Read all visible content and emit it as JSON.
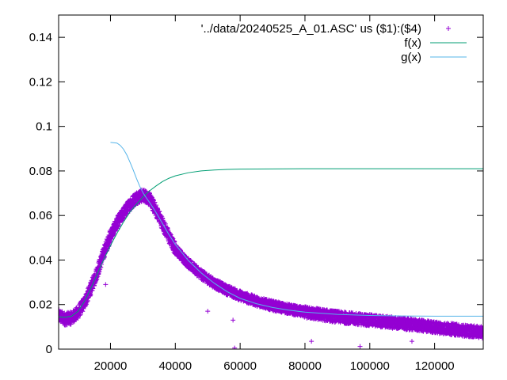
{
  "chart_data": {
    "type": "scatter",
    "title": "",
    "xlabel": "",
    "ylabel": "",
    "xlim": [
      4000,
      135000
    ],
    "ylim": [
      0,
      0.15
    ],
    "x_ticks": [
      20000,
      40000,
      60000,
      80000,
      100000,
      120000
    ],
    "x_tick_labels": [
      "20000",
      "40000",
      "60000",
      "80000",
      "100000",
      "120000"
    ],
    "y_ticks": [
      0,
      0.02,
      0.04,
      0.06,
      0.08,
      0.1,
      0.12,
      0.14
    ],
    "y_tick_labels": [
      "0",
      "0.02",
      "0.04",
      "0.06",
      "0.08",
      "0.1",
      "0.12",
      "0.14"
    ],
    "grid": false,
    "legend_position": "top-right",
    "series": [
      {
        "name": "'../data/20240525_A_01.ASC' us ($1):($4)",
        "kind": "points",
        "marker": "+",
        "color": "#9400d3",
        "x": [
          4000,
          6000,
          8000,
          10000,
          12000,
          14000,
          16000,
          18000,
          20000,
          22000,
          24000,
          26000,
          28000,
          30000,
          31000,
          32000,
          34000,
          36000,
          38000,
          40000,
          44000,
          48000,
          52000,
          56000,
          60000,
          65000,
          70000,
          75000,
          80000,
          85000,
          90000,
          95000,
          100000,
          105000,
          110000,
          115000,
          120000,
          125000,
          130000,
          135000
        ],
        "y": [
          0.015,
          0.0135,
          0.014,
          0.0165,
          0.021,
          0.0275,
          0.035,
          0.0435,
          0.051,
          0.0565,
          0.061,
          0.065,
          0.068,
          0.069,
          0.0685,
          0.0675,
          0.0625,
          0.0565,
          0.0505,
          0.045,
          0.0385,
          0.0335,
          0.0295,
          0.0265,
          0.024,
          0.0215,
          0.0195,
          0.018,
          0.0165,
          0.0155,
          0.0145,
          0.0137,
          0.013,
          0.0122,
          0.0115,
          0.0107,
          0.0098,
          0.009,
          0.0082,
          0.0075
        ]
      },
      {
        "name": "f(x)",
        "kind": "line",
        "color": "#009e73",
        "x": [
          4000,
          6000,
          8000,
          10000,
          12000,
          14000,
          16000,
          18000,
          20000,
          22000,
          24000,
          26000,
          28000,
          30000,
          32000,
          34000,
          36000,
          38000,
          40000,
          44000,
          48000,
          52000,
          56000,
          60000,
          70000,
          80000,
          90000,
          100000,
          110000,
          120000,
          135000
        ],
        "y": [
          0.0145,
          0.0143,
          0.0148,
          0.017,
          0.0215,
          0.0275,
          0.034,
          0.0405,
          0.0465,
          0.052,
          0.057,
          0.0615,
          0.065,
          0.0683,
          0.071,
          0.0732,
          0.0752,
          0.0767,
          0.0778,
          0.0792,
          0.08,
          0.0804,
          0.0807,
          0.0808,
          0.0809,
          0.081,
          0.081,
          0.081,
          0.081,
          0.081,
          0.081
        ]
      },
      {
        "name": "g(x)",
        "kind": "line",
        "color": "#56b4e9",
        "x": [
          20000,
          22000,
          23000,
          24000,
          25000,
          26000,
          27000,
          28000,
          29000,
          30000,
          31000,
          32000,
          33000,
          34000,
          36000,
          38000,
          40000,
          44000,
          48000,
          52000,
          56000,
          60000,
          65000,
          70000,
          75000,
          80000,
          90000,
          100000,
          110000,
          120000,
          135000
        ],
        "y": [
          0.0928,
          0.0925,
          0.0915,
          0.0898,
          0.0873,
          0.084,
          0.0805,
          0.0767,
          0.0732,
          0.0703,
          0.068,
          0.066,
          0.0638,
          0.0615,
          0.0565,
          0.0515,
          0.047,
          0.0398,
          0.0342,
          0.0296,
          0.0258,
          0.0228,
          0.0204,
          0.0187,
          0.0175,
          0.0166,
          0.0156,
          0.0151,
          0.0149,
          0.0148,
          0.0148
        ]
      }
    ],
    "outliers": {
      "x": [
        18500,
        50000,
        57800,
        58300,
        82000,
        97000,
        113000
      ],
      "y": [
        0.029,
        0.017,
        0.013,
        0.0005,
        0.0035,
        0.0012,
        0.0035
      ]
    }
  }
}
